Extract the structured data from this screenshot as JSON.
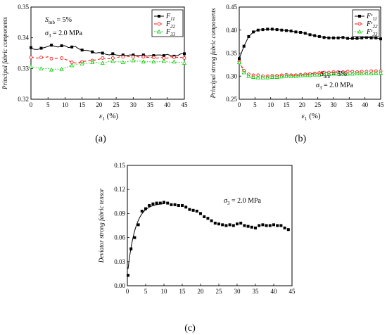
{
  "colors": {
    "f11": "#000000",
    "f22": "#ff0000",
    "f33": "#00cc00",
    "dev": "#000000"
  },
  "chart_data": [
    {
      "id": "a",
      "type": "line",
      "panel_label": "(a)",
      "xlabel_main": "ε",
      "xlabel_sub": "1",
      "xlabel_unit": "(%)",
      "ylabel": "Principal fabric components",
      "xlim": [
        0,
        45
      ],
      "ylim": [
        0.32,
        0.35
      ],
      "xticks": [
        "0",
        "5",
        "10",
        "15",
        "20",
        "25",
        "30",
        "35",
        "40",
        "45"
      ],
      "yticks": [
        "0.32",
        "0.33",
        "0.34",
        "0.35"
      ],
      "legend_position": "top-right",
      "annotations": [
        {
          "main": "S",
          "sub": "mb",
          "rest": " = 5%"
        },
        {
          "main": "σ",
          "sub": "3",
          "rest": " = 2.0 MPa"
        }
      ],
      "x": [
        0,
        1,
        2,
        3,
        4,
        5,
        6,
        7,
        8,
        9,
        10,
        11,
        12,
        13,
        14,
        15,
        16,
        17,
        18,
        19,
        20,
        21,
        22,
        23,
        24,
        25,
        26,
        27,
        28,
        29,
        30,
        31,
        32,
        33,
        34,
        35,
        36,
        37,
        38,
        39,
        40,
        41,
        42,
        43,
        44,
        45
      ],
      "series": [
        {
          "name_main": "F",
          "name_sub": "11",
          "style": "solid-square",
          "values": [
            0.3368,
            0.3362,
            0.3362,
            0.3366,
            0.3368,
            0.3372,
            0.3376,
            0.3372,
            0.337,
            0.3374,
            0.3374,
            0.3368,
            0.337,
            0.3372,
            0.3364,
            0.336,
            0.3359,
            0.3358,
            0.3354,
            0.335,
            0.3352,
            0.335,
            0.3346,
            0.3344,
            0.3348,
            0.3344,
            0.3343,
            0.3344,
            0.3342,
            0.3344,
            0.3344,
            0.3342,
            0.3343,
            0.3344,
            0.334,
            0.3342,
            0.3342,
            0.3344,
            0.3344,
            0.3342,
            0.3346,
            0.3342,
            0.334,
            0.3342,
            0.3348,
            0.3348
          ]
        },
        {
          "name_main": "F",
          "name_sub": "22",
          "style": "dash-circle",
          "values": [
            0.3336,
            0.3335,
            0.3334,
            0.3336,
            0.3336,
            0.3338,
            0.3332,
            0.3332,
            0.3334,
            0.3334,
            0.333,
            0.3326,
            0.332,
            0.3318,
            0.332,
            0.3322,
            0.3324,
            0.3326,
            0.3326,
            0.3328,
            0.333,
            0.3334,
            0.3332,
            0.3332,
            0.3334,
            0.3334,
            0.3338,
            0.3338,
            0.334,
            0.3338,
            0.3338,
            0.334,
            0.3336,
            0.3338,
            0.3336,
            0.3336,
            0.3336,
            0.3334,
            0.3336,
            0.3334,
            0.3334,
            0.3338,
            0.3336,
            0.3336,
            0.3336,
            0.3334
          ]
        },
        {
          "name_main": "F",
          "name_sub": "33",
          "style": "dot-triangle",
          "values": [
            0.3306,
            0.3302,
            0.3302,
            0.33,
            0.33,
            0.33,
            0.3296,
            0.3298,
            0.3298,
            0.3298,
            0.3302,
            0.3306,
            0.331,
            0.3312,
            0.3316,
            0.3316,
            0.3316,
            0.3318,
            0.332,
            0.332,
            0.3318,
            0.3318,
            0.332,
            0.3324,
            0.3324,
            0.3322,
            0.3322,
            0.332,
            0.3322,
            0.3324,
            0.3326,
            0.3324,
            0.3324,
            0.3322,
            0.3322,
            0.3322,
            0.3322,
            0.3322,
            0.3322,
            0.3324,
            0.3322,
            0.332,
            0.3322,
            0.332,
            0.332,
            0.3318
          ]
        }
      ]
    },
    {
      "id": "b",
      "type": "line",
      "panel_label": "(b)",
      "xlabel_main": "ε",
      "xlabel_sub": "1",
      "xlabel_unit": "(%)",
      "ylabel": "Principal strong fabric components",
      "xlim": [
        0,
        45
      ],
      "ylim": [
        0.25,
        0.45
      ],
      "xticks": [
        "0",
        "5",
        "10",
        "15",
        "20",
        "25",
        "30",
        "35",
        "40",
        "45"
      ],
      "yticks": [
        "0.25",
        "0.30",
        "0.35",
        "0.40",
        "0.45"
      ],
      "legend_position": "top-right",
      "annotations": [
        {
          "main": "S",
          "sub": "mb",
          "rest": " = 5%"
        },
        {
          "main": "σ",
          "sub": "3",
          "rest": " = 2.0 MPa"
        }
      ],
      "x": [
        0,
        1.5,
        3,
        4.5,
        6,
        7.5,
        9,
        10.5,
        12,
        13.5,
        15,
        16.5,
        18,
        19.5,
        21,
        22.5,
        24,
        25.5,
        27,
        28.5,
        30,
        31.5,
        33,
        34.5,
        36,
        37.5,
        39,
        40.5,
        42,
        43.5,
        45
      ],
      "series": [
        {
          "name_main": "F",
          "name_sup": "s",
          "name_sub": "11",
          "style": "solid-square",
          "values": [
            0.338,
            0.365,
            0.386,
            0.396,
            0.4,
            0.401,
            0.402,
            0.402,
            0.401,
            0.4,
            0.399,
            0.398,
            0.396,
            0.395,
            0.393,
            0.39,
            0.388,
            0.386,
            0.384,
            0.383,
            0.383,
            0.383,
            0.384,
            0.382,
            0.382,
            0.382,
            0.383,
            0.384,
            0.383,
            0.383,
            0.381
          ]
        },
        {
          "name_main": "F",
          "name_sup": "s",
          "name_sub": "22",
          "style": "dash-circle",
          "values": [
            0.332,
            0.312,
            0.304,
            0.302,
            0.302,
            0.3,
            0.3,
            0.301,
            0.301,
            0.302,
            0.303,
            0.302,
            0.302,
            0.303,
            0.304,
            0.305,
            0.306,
            0.307,
            0.308,
            0.308,
            0.309,
            0.309,
            0.309,
            0.31,
            0.31,
            0.309,
            0.31,
            0.31,
            0.311,
            0.311,
            0.311
          ]
        },
        {
          "name_main": "F",
          "name_sup": "s",
          "name_sub": "33",
          "style": "dot-triangle",
          "values": [
            0.33,
            0.308,
            0.3,
            0.298,
            0.297,
            0.297,
            0.297,
            0.298,
            0.298,
            0.299,
            0.3,
            0.3,
            0.3,
            0.301,
            0.302,
            0.302,
            0.303,
            0.303,
            0.304,
            0.304,
            0.305,
            0.305,
            0.305,
            0.305,
            0.305,
            0.306,
            0.306,
            0.306,
            0.306,
            0.307,
            0.307
          ]
        }
      ]
    },
    {
      "id": "c",
      "type": "scatter",
      "panel_label": "(c)",
      "xlabel": "",
      "ylabel": "Deviator strong fabric tensor",
      "xlim": [
        0,
        45
      ],
      "ylim": [
        0.0,
        0.15
      ],
      "xticks": [
        "0",
        "5",
        "10",
        "15",
        "20",
        "25",
        "30",
        "35",
        "40",
        "45"
      ],
      "yticks": [
        "0.00",
        "0.03",
        "0.06",
        "0.09",
        "0.12",
        "0.15"
      ],
      "annotations": [
        {
          "main": "σ",
          "sub": "3",
          "rest": " = 2.0 MPa"
        }
      ],
      "fit_curve": true,
      "x": [
        0.2,
        1,
        2,
        3,
        4,
        5,
        6,
        7,
        8,
        9,
        10,
        11,
        12,
        13,
        14,
        15,
        16,
        17,
        18,
        19,
        20,
        21,
        22,
        23,
        24,
        25,
        26,
        27,
        28,
        29,
        30,
        31,
        32,
        33,
        34,
        35,
        36,
        37,
        38,
        39,
        40,
        41,
        42,
        43,
        44
      ],
      "series": [
        {
          "name": "",
          "style": "square-markers",
          "values": [
            0.013,
            0.046,
            0.06,
            0.076,
            0.093,
            0.096,
            0.1,
            0.102,
            0.103,
            0.103,
            0.104,
            0.103,
            0.101,
            0.101,
            0.1,
            0.1,
            0.098,
            0.095,
            0.094,
            0.093,
            0.09,
            0.086,
            0.084,
            0.081,
            0.078,
            0.077,
            0.076,
            0.075,
            0.076,
            0.075,
            0.077,
            0.078,
            0.075,
            0.074,
            0.073,
            0.072,
            0.075,
            0.076,
            0.075,
            0.075,
            0.076,
            0.075,
            0.075,
            0.072,
            0.07
          ]
        }
      ]
    }
  ]
}
